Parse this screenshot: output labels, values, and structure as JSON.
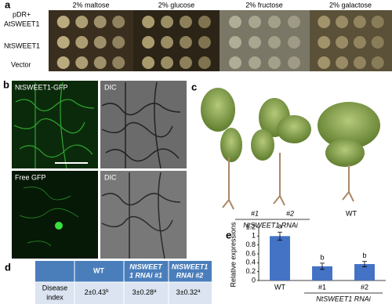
{
  "panel_a": {
    "label": "a",
    "vector_label": "pDR+",
    "conditions": [
      "2% maltose",
      "2% glucose",
      "2% fructose",
      "2% galactose"
    ],
    "rows": [
      "AtSWEET1",
      "NtSWEET1",
      "Vector"
    ]
  },
  "panel_b": {
    "label": "b",
    "images": [
      "NtSWEET1-GFP",
      "DIC",
      "Free GFP",
      "DIC"
    ]
  },
  "panel_c": {
    "label": "c",
    "plants": [
      "#1",
      "#2",
      "WT"
    ],
    "group_label": "NtSWEET1 RNAi"
  },
  "panel_d": {
    "label": "d",
    "table": {
      "header": [
        [
          "WT"
        ],
        [
          "NtSWEET",
          "1 RNAi #1"
        ],
        [
          "NtSWEET1",
          "RNAi #2"
        ]
      ],
      "row_label": [
        "Disease",
        "index"
      ],
      "cells": [
        {
          "text": "2±0.43",
          "sup": "b"
        },
        {
          "text": "3±0.28",
          "sup": "a"
        },
        {
          "text": "3±0.32",
          "sup": "a"
        }
      ]
    }
  },
  "panel_e": {
    "label": "e"
  },
  "chart_data": {
    "type": "bar",
    "y_label": "Relative expressions",
    "categories": [
      "WT",
      "#1",
      "#2"
    ],
    "group_label": "NtSWEET1 RNAi",
    "values": [
      1.0,
      0.32,
      0.37
    ],
    "errors": [
      0.09,
      0.07,
      0.06
    ],
    "annotations": [
      "a",
      "b",
      "b"
    ],
    "color": "#4472c4",
    "ylim": [
      0,
      1.2
    ],
    "yticks": [
      0,
      0.2,
      0.4,
      0.6,
      0.8,
      1,
      1.2
    ]
  }
}
